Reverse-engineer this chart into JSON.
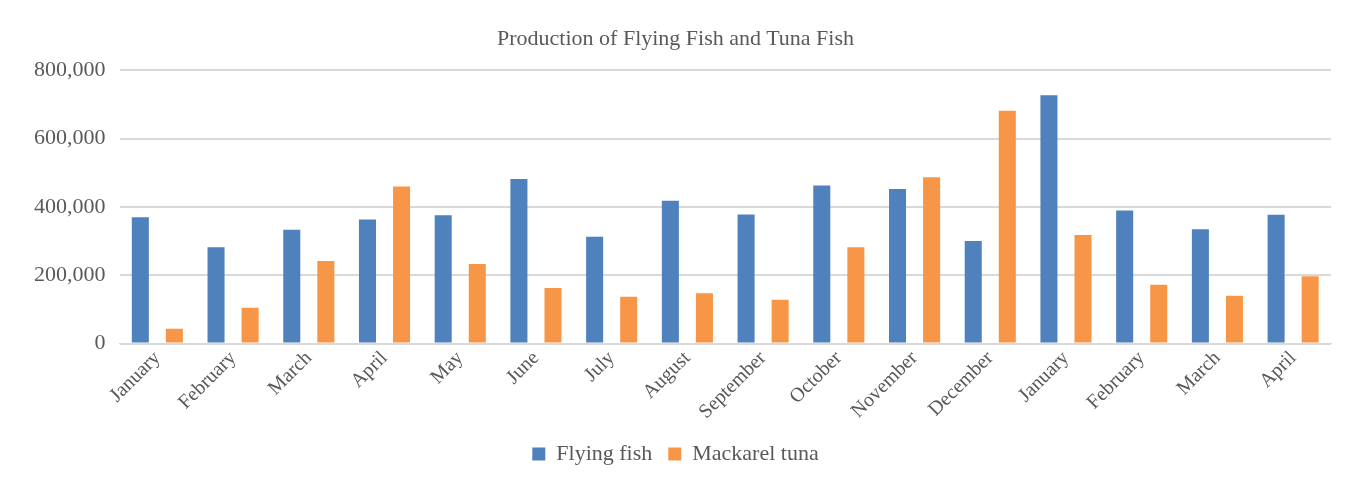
{
  "chart_data": {
    "type": "bar",
    "title": "Production of Flying Fish and Tuna Fish",
    "categories": [
      "January",
      "February",
      "March",
      "April",
      "May",
      "June",
      "July",
      "August",
      "September",
      "October",
      "November",
      "December",
      "January",
      "February",
      "March",
      "April"
    ],
    "series": [
      {
        "name": "Flying fish",
        "color": "#4f81bd",
        "values": [
          370000,
          282000,
          333000,
          363000,
          376000,
          482000,
          313000,
          418000,
          378000,
          463000,
          453000,
          300000,
          727000,
          390000,
          335000,
          377000
        ]
      },
      {
        "name": "Mackarel tuna",
        "color": "#f79646",
        "values": [
          43000,
          105000,
          242000,
          460000,
          233000,
          163000,
          137000,
          147000,
          128000,
          282000,
          487000,
          682000,
          318000,
          172000,
          140000,
          197000
        ]
      }
    ],
    "ylim": [
      0,
      800000
    ],
    "yticks": [
      {
        "value": 0,
        "label": "0"
      },
      {
        "value": 200000,
        "label": "200,000"
      },
      {
        "value": 400000,
        "label": "400,000"
      },
      {
        "value": 600000,
        "label": "600,000"
      },
      {
        "value": 800000,
        "label": "800,000"
      }
    ],
    "grid": "y",
    "legend": "bottom"
  }
}
